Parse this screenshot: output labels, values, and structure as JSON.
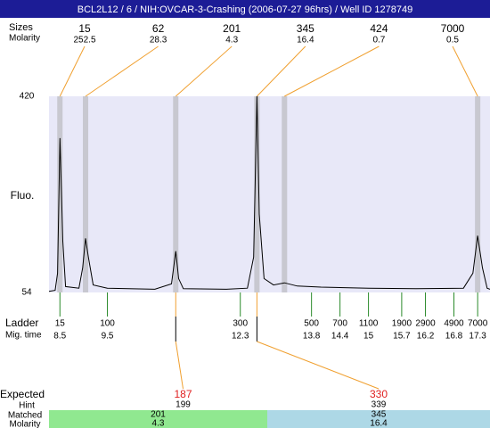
{
  "chart_data": {
    "type": "electropherogram",
    "title": "BCL2L12 / 6 / NIH:OVCAR-3-Crashing (2006-07-27 96hrs) / Well ID 1278749",
    "peak_row_label": "Sizes",
    "molarity_row_label": "Molarity",
    "ylabel": "Fluo.",
    "ylim": [
      54,
      420
    ],
    "yticks": [
      54,
      420
    ],
    "xlim": [
      8.27,
      17.56
    ],
    "peaks": [
      {
        "size": 15,
        "molarity": 252.5,
        "time": 8.5
      },
      {
        "size": 62,
        "molarity": 28.3,
        "time": 9.04
      },
      {
        "size": 201,
        "molarity": 4.3,
        "time": 10.94
      },
      {
        "size": 345,
        "molarity": 16.4,
        "time": 12.65
      },
      {
        "size": 424,
        "molarity": 0.7,
        "time": 13.23
      },
      {
        "size": 7000,
        "molarity": 0.5,
        "time": 17.3
      }
    ],
    "trace": {
      "time": [
        8.27,
        8.4,
        8.45,
        8.5,
        8.56,
        8.62,
        8.9,
        8.98,
        9.04,
        9.1,
        9.2,
        9.5,
        10.5,
        10.85,
        10.94,
        11.0,
        11.1,
        12.0,
        12.45,
        12.58,
        12.65,
        12.7,
        12.8,
        13.0,
        13.23,
        13.5,
        14.0,
        15.0,
        16.0,
        17.0,
        17.2,
        17.3,
        17.4,
        17.5,
        17.56
      ],
      "fluo": [
        56,
        58,
        90,
        342,
        150,
        65,
        62,
        100,
        155,
        120,
        68,
        62,
        60,
        70,
        131,
        80,
        61,
        60,
        62,
        120,
        420,
        200,
        80,
        68,
        72,
        66,
        64,
        62,
        61,
        62,
        90,
        160,
        100,
        62,
        60
      ]
    },
    "ladder_label": "Ladder",
    "migtime_label": "Mig. time",
    "ladder": {
      "sizes": [
        15,
        100,
        300,
        500,
        700,
        1100,
        1900,
        2900,
        4900,
        7000
      ],
      "times": [
        8.5,
        9.5,
        12.3,
        13.8,
        14.4,
        15,
        15.7,
        16.2,
        16.8,
        17.3
      ]
    },
    "expected_label": "Expected",
    "hint_label": "Hint",
    "matched_label": "Matched",
    "expected_molarity_label": "Molarity",
    "expected": [
      {
        "expected": 187,
        "hint": 199,
        "matched": 201,
        "molarity": 4.3,
        "time": 10.94,
        "color": "#90e890"
      },
      {
        "expected": 330,
        "hint": 339,
        "matched": 345,
        "molarity": 16.4,
        "time": 12.65,
        "color": "#add8e6"
      }
    ]
  }
}
